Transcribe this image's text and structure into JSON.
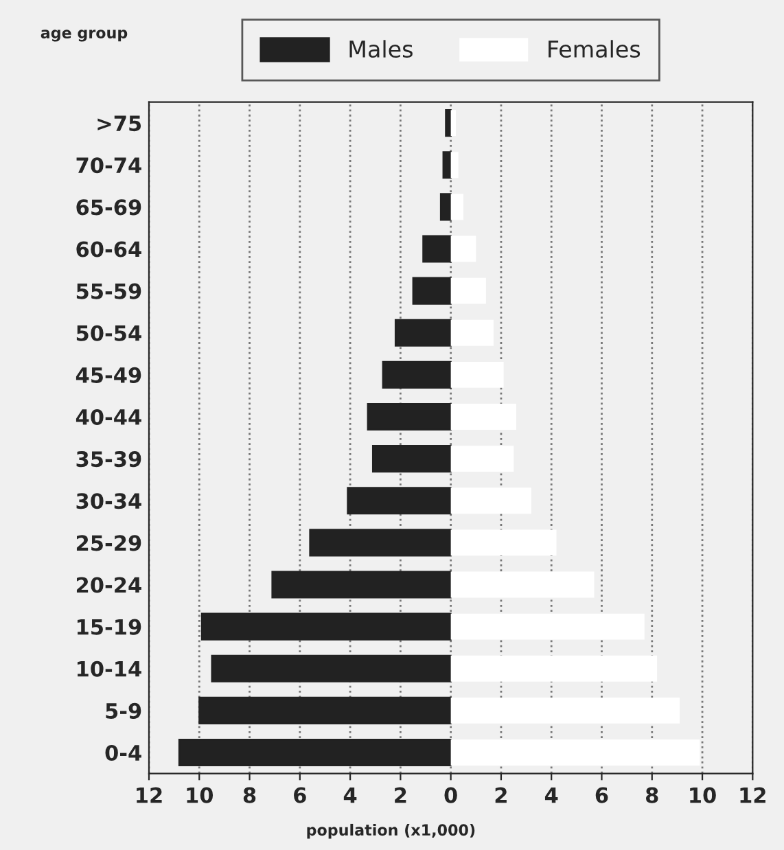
{
  "chart_data": {
    "type": "bar",
    "orientation": "horizontal",
    "stacked": true,
    "xlabel": "population (x1,000)",
    "ylabel": "age group",
    "categories": [
      ">75",
      "70-74",
      "65-69",
      "60-64",
      "55-59",
      "50-54",
      "45-49",
      "40-44",
      "35-39",
      "30-34",
      "25-29",
      "20-24",
      "15-19",
      "10-14",
      "5-9",
      "0-4"
    ],
    "series": [
      {
        "name": "Males",
        "color": "#222222",
        "values": [
          -0.2,
          -0.3,
          -0.4,
          -1.1,
          -1.5,
          -2.2,
          -2.7,
          -3.3,
          -3.1,
          -4.1,
          -5.6,
          -7.1,
          -9.9,
          -9.5,
          -10.0,
          -10.8
        ]
      },
      {
        "name": "Females",
        "color": "#ffffff",
        "values": [
          0.2,
          0.3,
          0.5,
          1.0,
          1.4,
          1.7,
          2.1,
          2.6,
          2.5,
          3.2,
          4.2,
          5.7,
          7.7,
          8.2,
          9.1,
          9.9
        ]
      }
    ],
    "xlim": [
      -12,
      12
    ],
    "xticks": [
      {
        "value": -12,
        "label": "12"
      },
      {
        "value": -10,
        "label": "10"
      },
      {
        "value": -8,
        "label": "8"
      },
      {
        "value": -6,
        "label": "6"
      },
      {
        "value": -4,
        "label": "4"
      },
      {
        "value": -2,
        "label": "2"
      },
      0,
      2,
      4,
      6,
      8,
      10,
      12
    ],
    "grid": "x",
    "legend": "top"
  }
}
